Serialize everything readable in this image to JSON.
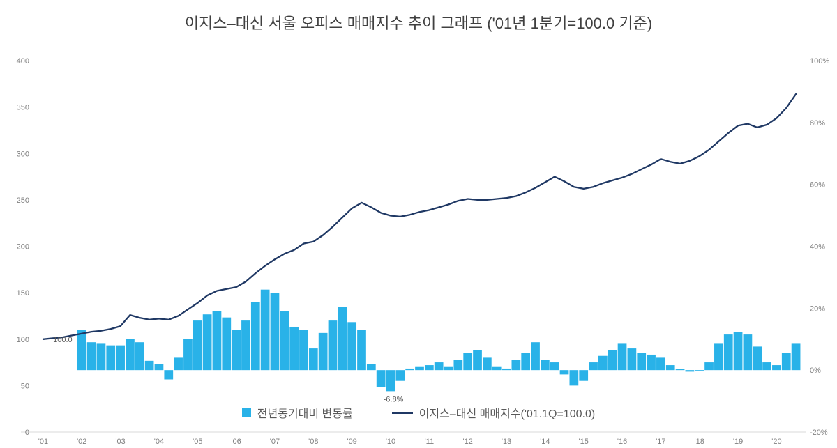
{
  "chart_data": {
    "type": "bar",
    "subtype": "bar-line combo, dual axis, quarterly data 2001Q1-2020Q3",
    "title": "이지스–대신 서울 오피스 매매지수 추이 그래프 ('01년 1분기=100.0 기준)",
    "grid": false,
    "legend_position": "bottom-center",
    "x_year_labels": [
      "'01",
      "'02",
      "'03",
      "'04",
      "'05",
      "'06",
      "'07",
      "'08",
      "'09",
      "'10",
      "'11",
      "'12",
      "'13",
      "'14",
      "'15",
      "'16",
      "'17",
      "'18",
      "'19",
      "'20"
    ],
    "left_axis": {
      "min": 0,
      "max": 400,
      "ticks": [
        0,
        50,
        100,
        150,
        200,
        250,
        300,
        350,
        400
      ]
    },
    "right_axis": {
      "min": -20,
      "max": 100,
      "suffix": "%",
      "ticks": [
        -20,
        0,
        20,
        40,
        60,
        80,
        100
      ]
    },
    "legend": [
      {
        "label": "전년동기대비 변동률"
      },
      {
        "label": "이지스–대신 매매지수('01.1Q=100.0)"
      }
    ],
    "series": [
      {
        "name": "전년동기대비 변동률",
        "type": "bar",
        "axis": "right",
        "color": "#29b2e8",
        "values": [
          null,
          null,
          null,
          null,
          13,
          9,
          8.5,
          8,
          8,
          10,
          9,
          3,
          2,
          -3,
          4,
          10,
          16,
          18,
          19,
          17,
          13,
          16,
          22,
          26,
          25,
          19,
          14,
          13,
          7,
          12,
          16,
          20.5,
          15.5,
          13,
          2,
          -5.5,
          -6.8,
          -3.5,
          0.5,
          1,
          1.6,
          2.5,
          1,
          3.4,
          5.5,
          6.4,
          4,
          1,
          0.5,
          3.4,
          5.5,
          9,
          3.4,
          2.5,
          -1.4,
          -5,
          -3.5,
          2.5,
          4.6,
          6.4,
          8.5,
          7,
          5.5,
          5,
          4,
          1.6,
          0.4,
          -0.5,
          -0.2,
          2.5,
          8.5,
          11.5,
          12.4,
          11.5,
          7.6,
          2.5,
          1.6,
          5.5,
          8.5
        ]
      },
      {
        "name": "이지스–대신 매매지수('01.1Q=100.0)",
        "type": "line",
        "axis": "left",
        "color": "#1f3864",
        "values": [
          100,
          101,
          102,
          104,
          106,
          108,
          109,
          111,
          114,
          126,
          123,
          121,
          122,
          121,
          125,
          132,
          139,
          147,
          152,
          154,
          156,
          162,
          171,
          179,
          186,
          192,
          196,
          203,
          205,
          212,
          221,
          231,
          241,
          247,
          242,
          236,
          233,
          232,
          234,
          237,
          239,
          242,
          245,
          249,
          251,
          250,
          250,
          251,
          252,
          254,
          258,
          263,
          269,
          275,
          270,
          264,
          262,
          264,
          268,
          271,
          274,
          278,
          283,
          288,
          294,
          291,
          289,
          292,
          297,
          304,
          313,
          322,
          330,
          332,
          328,
          331,
          338,
          349,
          364
        ]
      }
    ],
    "annotations": [
      {
        "text": "100.0",
        "series": "line",
        "index": 0
      },
      {
        "text": "-6.8%",
        "series": "bar",
        "index": 36
      }
    ]
  }
}
